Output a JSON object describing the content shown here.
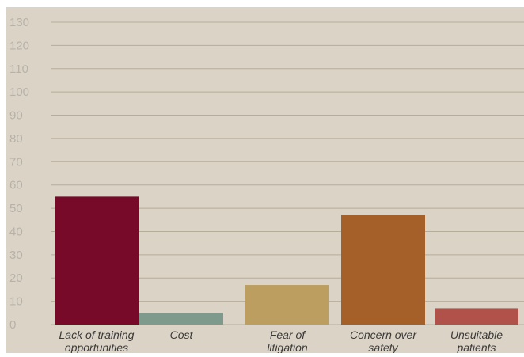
{
  "chart_data": {
    "type": "bar",
    "title": "",
    "xlabel": "",
    "ylabel": "",
    "categories": [
      [
        "Lack of training",
        "opportunities"
      ],
      [
        "Cost"
      ],
      [
        "Fear of",
        "litigation"
      ],
      [
        "Concern over",
        "safety"
      ],
      [
        "Unsuitable",
        "patients"
      ]
    ],
    "values": [
      55,
      5,
      17,
      47,
      7
    ],
    "bar_colors": [
      "#760a28",
      "#7d9a8c",
      "#bb9e60",
      "#a46028",
      "#b0524a"
    ],
    "ylim": [
      0,
      130
    ],
    "yticks": [
      0,
      10,
      20,
      30,
      40,
      50,
      60,
      70,
      80,
      90,
      100,
      110,
      120,
      130
    ],
    "grid": true,
    "legend": "none",
    "background_color": "#dbd3c6",
    "grid_color": "#b6ac9a"
  }
}
